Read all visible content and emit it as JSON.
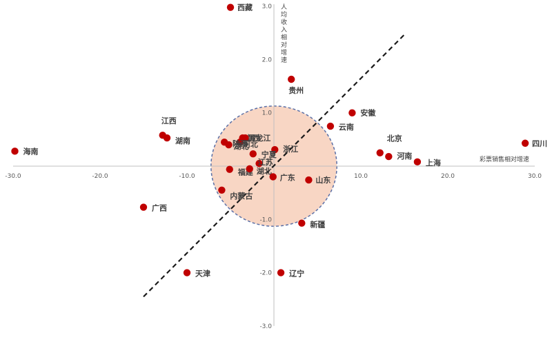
{
  "chart_data": {
    "type": "scatter",
    "xlabel": "彩票销售相对增速",
    "ylabel": "人均收入相对增速",
    "xlim": [
      -30,
      30
    ],
    "ylim": [
      -3,
      3
    ],
    "xticks": [
      "-30.0",
      "-20.0",
      "-10.0",
      "0.0",
      "10.0",
      "20.0",
      "30.0"
    ],
    "yticks": [
      "-3.0",
      "-2.0",
      "-1.0",
      "0.0",
      "1.0",
      "2.0",
      "3.0"
    ],
    "point_color": "#c00000",
    "circle": {
      "cx": 0,
      "cy": 0,
      "r_x_units": 7.0,
      "fill": "#f8d6c4",
      "stroke": "#5a6fa6"
    },
    "trend_line": {
      "x1": -15,
      "y1": -2.45,
      "x2": 15.2,
      "y2": 2.5
    },
    "points": [
      {
        "name": "西藏",
        "x": -5.0,
        "y": 2.98
      },
      {
        "name": "贵州",
        "x": 2.0,
        "y": 1.63
      },
      {
        "name": "安徽",
        "x": 9.0,
        "y": 1.0
      },
      {
        "name": "云南",
        "x": 6.5,
        "y": 0.75
      },
      {
        "name": "北京",
        "x": 12.2,
        "y": 0.25
      },
      {
        "name": "河南",
        "x": 13.2,
        "y": 0.18
      },
      {
        "name": "上海",
        "x": 16.5,
        "y": 0.08
      },
      {
        "name": "四川",
        "x": 28.9,
        "y": 0.43
      },
      {
        "name": "海南",
        "x": -29.8,
        "y": 0.28
      },
      {
        "name": "江西",
        "x": -12.8,
        "y": 0.58
      },
      {
        "name": "湖南",
        "x": -12.3,
        "y": 0.53
      },
      {
        "name": "山西",
        "x": -3.6,
        "y": 0.53
      },
      {
        "name": "黑龙江",
        "x": -3.3,
        "y": 0.53
      },
      {
        "name": "河北",
        "x": -3.9,
        "y": 0.45
      },
      {
        "name": "陕西",
        "x": -5.7,
        "y": 0.45
      },
      {
        "name": "湖北",
        "x": -5.2,
        "y": 0.4
      },
      {
        "name": "浙江",
        "x": 0.1,
        "y": 0.31
      },
      {
        "name": "宁夏",
        "x": -2.4,
        "y": 0.23
      },
      {
        "name": "江苏",
        "x": -1.7,
        "y": 0.05
      },
      {
        "name": "福建",
        "x": -5.1,
        "y": -0.06
      },
      {
        "name": "湖北",
        "x": -2.8,
        "y": -0.05
      },
      {
        "name": "广东",
        "x": -0.1,
        "y": -0.2
      },
      {
        "name": "山东",
        "x": 4.0,
        "y": -0.26
      },
      {
        "name": "内蒙古",
        "x": -6.0,
        "y": -0.45
      },
      {
        "name": "广西",
        "x": -15.0,
        "y": -0.77
      },
      {
        "name": "新疆",
        "x": 3.2,
        "y": -1.07
      },
      {
        "name": "天津",
        "x": -10.0,
        "y": -2.0
      },
      {
        "name": "辽宁",
        "x": 0.8,
        "y": -2.0
      }
    ]
  }
}
